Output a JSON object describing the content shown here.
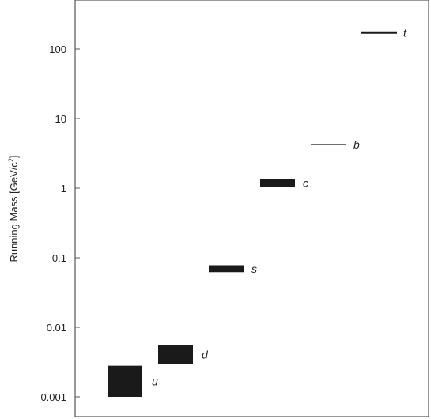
{
  "chart_data": {
    "type": "scatter",
    "title": "",
    "xlabel": "",
    "ylabel": "Running Mass [GeV/c",
    "ylabel_sup": "2",
    "ylabel_end": "]",
    "yscale": "log",
    "ylim": [
      0.0007,
      520
    ],
    "yticks": [
      {
        "value": 100,
        "label": "100"
      },
      {
        "value": 10,
        "label": "10"
      },
      {
        "value": 1,
        "label": "1"
      },
      {
        "value": 0.1,
        "label": "0.1"
      },
      {
        "value": 0.01,
        "label": "0.01"
      },
      {
        "value": 0.001,
        "label": "0.001"
      }
    ],
    "grid": false,
    "series": [
      {
        "name": "u",
        "low": 0.001,
        "high": 0.0028
      },
      {
        "name": "d",
        "low": 0.003,
        "high": 0.0055
      },
      {
        "name": "s",
        "low": 0.062,
        "high": 0.078
      },
      {
        "name": "c",
        "low": 1.05,
        "high": 1.35
      },
      {
        "name": "b",
        "low": 4.2,
        "high": 4.2
      },
      {
        "name": "t",
        "low": 172,
        "high": 172
      }
    ],
    "colors": {
      "box": "#1a1a1a",
      "axis": "#555555"
    }
  }
}
